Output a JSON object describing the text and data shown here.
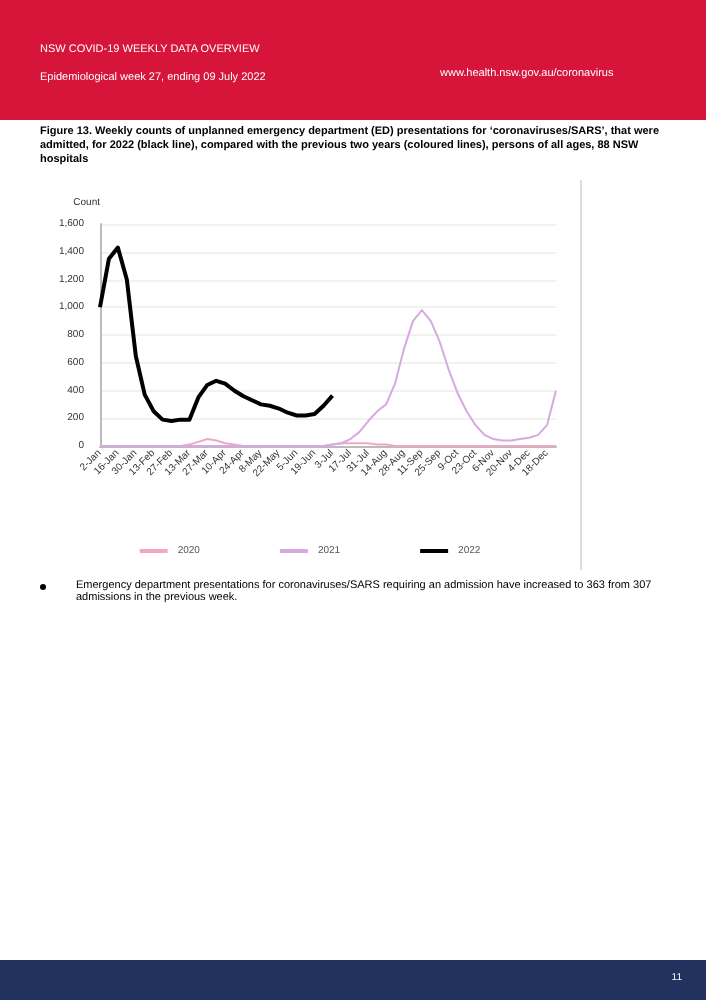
{
  "chart_data": {
    "type": "line",
    "title": "Figure 13. Weekly counts of unplanned emergency department (ED) presentations for ‘coronaviruses/SARS’, that were admitted, for 2022 (black line), compared with the previous two years (coloured lines), persons of all ages, 88 NSW hospitals",
    "ylabel": "Count",
    "annotations": [
      "NSW COVID-19 WEEKLY DATA OVERVIEW",
      "Epidemiological week 27, ending 09 July 2022",
      "www.health.nsw.gov.au/coronavirus",
      "Emergency department presentations for coronaviruses/SARS requiring an admission have increased to 363 from 307 admissions in the previous week.",
      "11"
    ],
    "categories": [
      "2-Jan",
      null,
      "16-Jan",
      null,
      "30-Jan",
      null,
      "13-Feb",
      null,
      "27-Feb",
      null,
      "13-Mar",
      null,
      "27-Mar",
      null,
      "10-Apr",
      null,
      "24-Apr",
      null,
      "8-May",
      null,
      "22-May",
      null,
      "5-Jun",
      null,
      "19-Jun",
      null,
      "3-Jul",
      null,
      "17-Jul",
      null,
      "31-Jul",
      null,
      "14-Aug",
      null,
      "28-Aug",
      null,
      "11-Sep",
      null,
      "25-Sep",
      null,
      "9-Oct",
      null,
      "23-Oct",
      null,
      "6-Nov",
      null,
      "20-Nov",
      null,
      "4-Dec",
      null,
      "18-Dec",
      null
    ],
    "series": [
      {
        "name": "2020",
        "color": "#f2a6c4",
        "values": [
          0,
          0,
          0,
          0,
          0,
          0,
          0,
          0,
          0,
          0,
          10,
          30,
          50,
          40,
          20,
          10,
          0,
          0,
          0,
          0,
          0,
          0,
          0,
          0,
          0,
          0,
          10,
          20,
          20,
          20,
          20,
          10,
          10,
          0,
          0,
          0,
          0,
          0,
          0,
          0,
          0,
          0,
          0,
          0,
          0,
          0,
          0,
          0,
          0,
          0,
          0,
          0
        ]
      },
      {
        "name": "2021",
        "color": "#d6a9e0",
        "values": [
          0,
          0,
          0,
          0,
          0,
          0,
          0,
          0,
          0,
          0,
          0,
          0,
          0,
          0,
          0,
          0,
          0,
          0,
          0,
          0,
          0,
          0,
          0,
          0,
          0,
          0,
          10,
          20,
          50,
          100,
          180,
          250,
          300,
          450,
          700,
          900,
          980,
          900,
          750,
          550,
          380,
          250,
          150,
          80,
          50,
          40,
          40,
          50,
          60,
          80,
          150,
          400
        ]
      },
      {
        "name": "2022",
        "color": "#000000",
        "values": [
          1000,
          1350,
          1430,
          1200,
          650,
          370,
          250,
          190,
          180,
          190,
          190,
          350,
          440,
          470,
          450,
          400,
          360,
          330,
          300,
          290,
          270,
          240,
          220,
          220,
          230,
          290,
          363,
          null,
          null,
          null,
          null,
          null,
          null,
          null,
          null,
          null,
          null,
          null,
          null,
          null,
          null,
          null,
          null,
          null,
          null,
          null,
          null,
          null,
          null,
          null,
          null,
          null
        ]
      }
    ],
    "ylim": [
      0,
      1600
    ],
    "yticks": [
      0,
      200,
      400,
      600,
      800,
      {
        "value": 1000,
        "label": "1,000"
      },
      {
        "value": 1200,
        "label": "1,200"
      },
      {
        "value": 1400,
        "label": "1,400"
      },
      {
        "value": 1600,
        "label": "1,600"
      }
    ],
    "grid": "y",
    "legend": "bottom",
    "marker": "none",
    "line_style": "solid"
  }
}
